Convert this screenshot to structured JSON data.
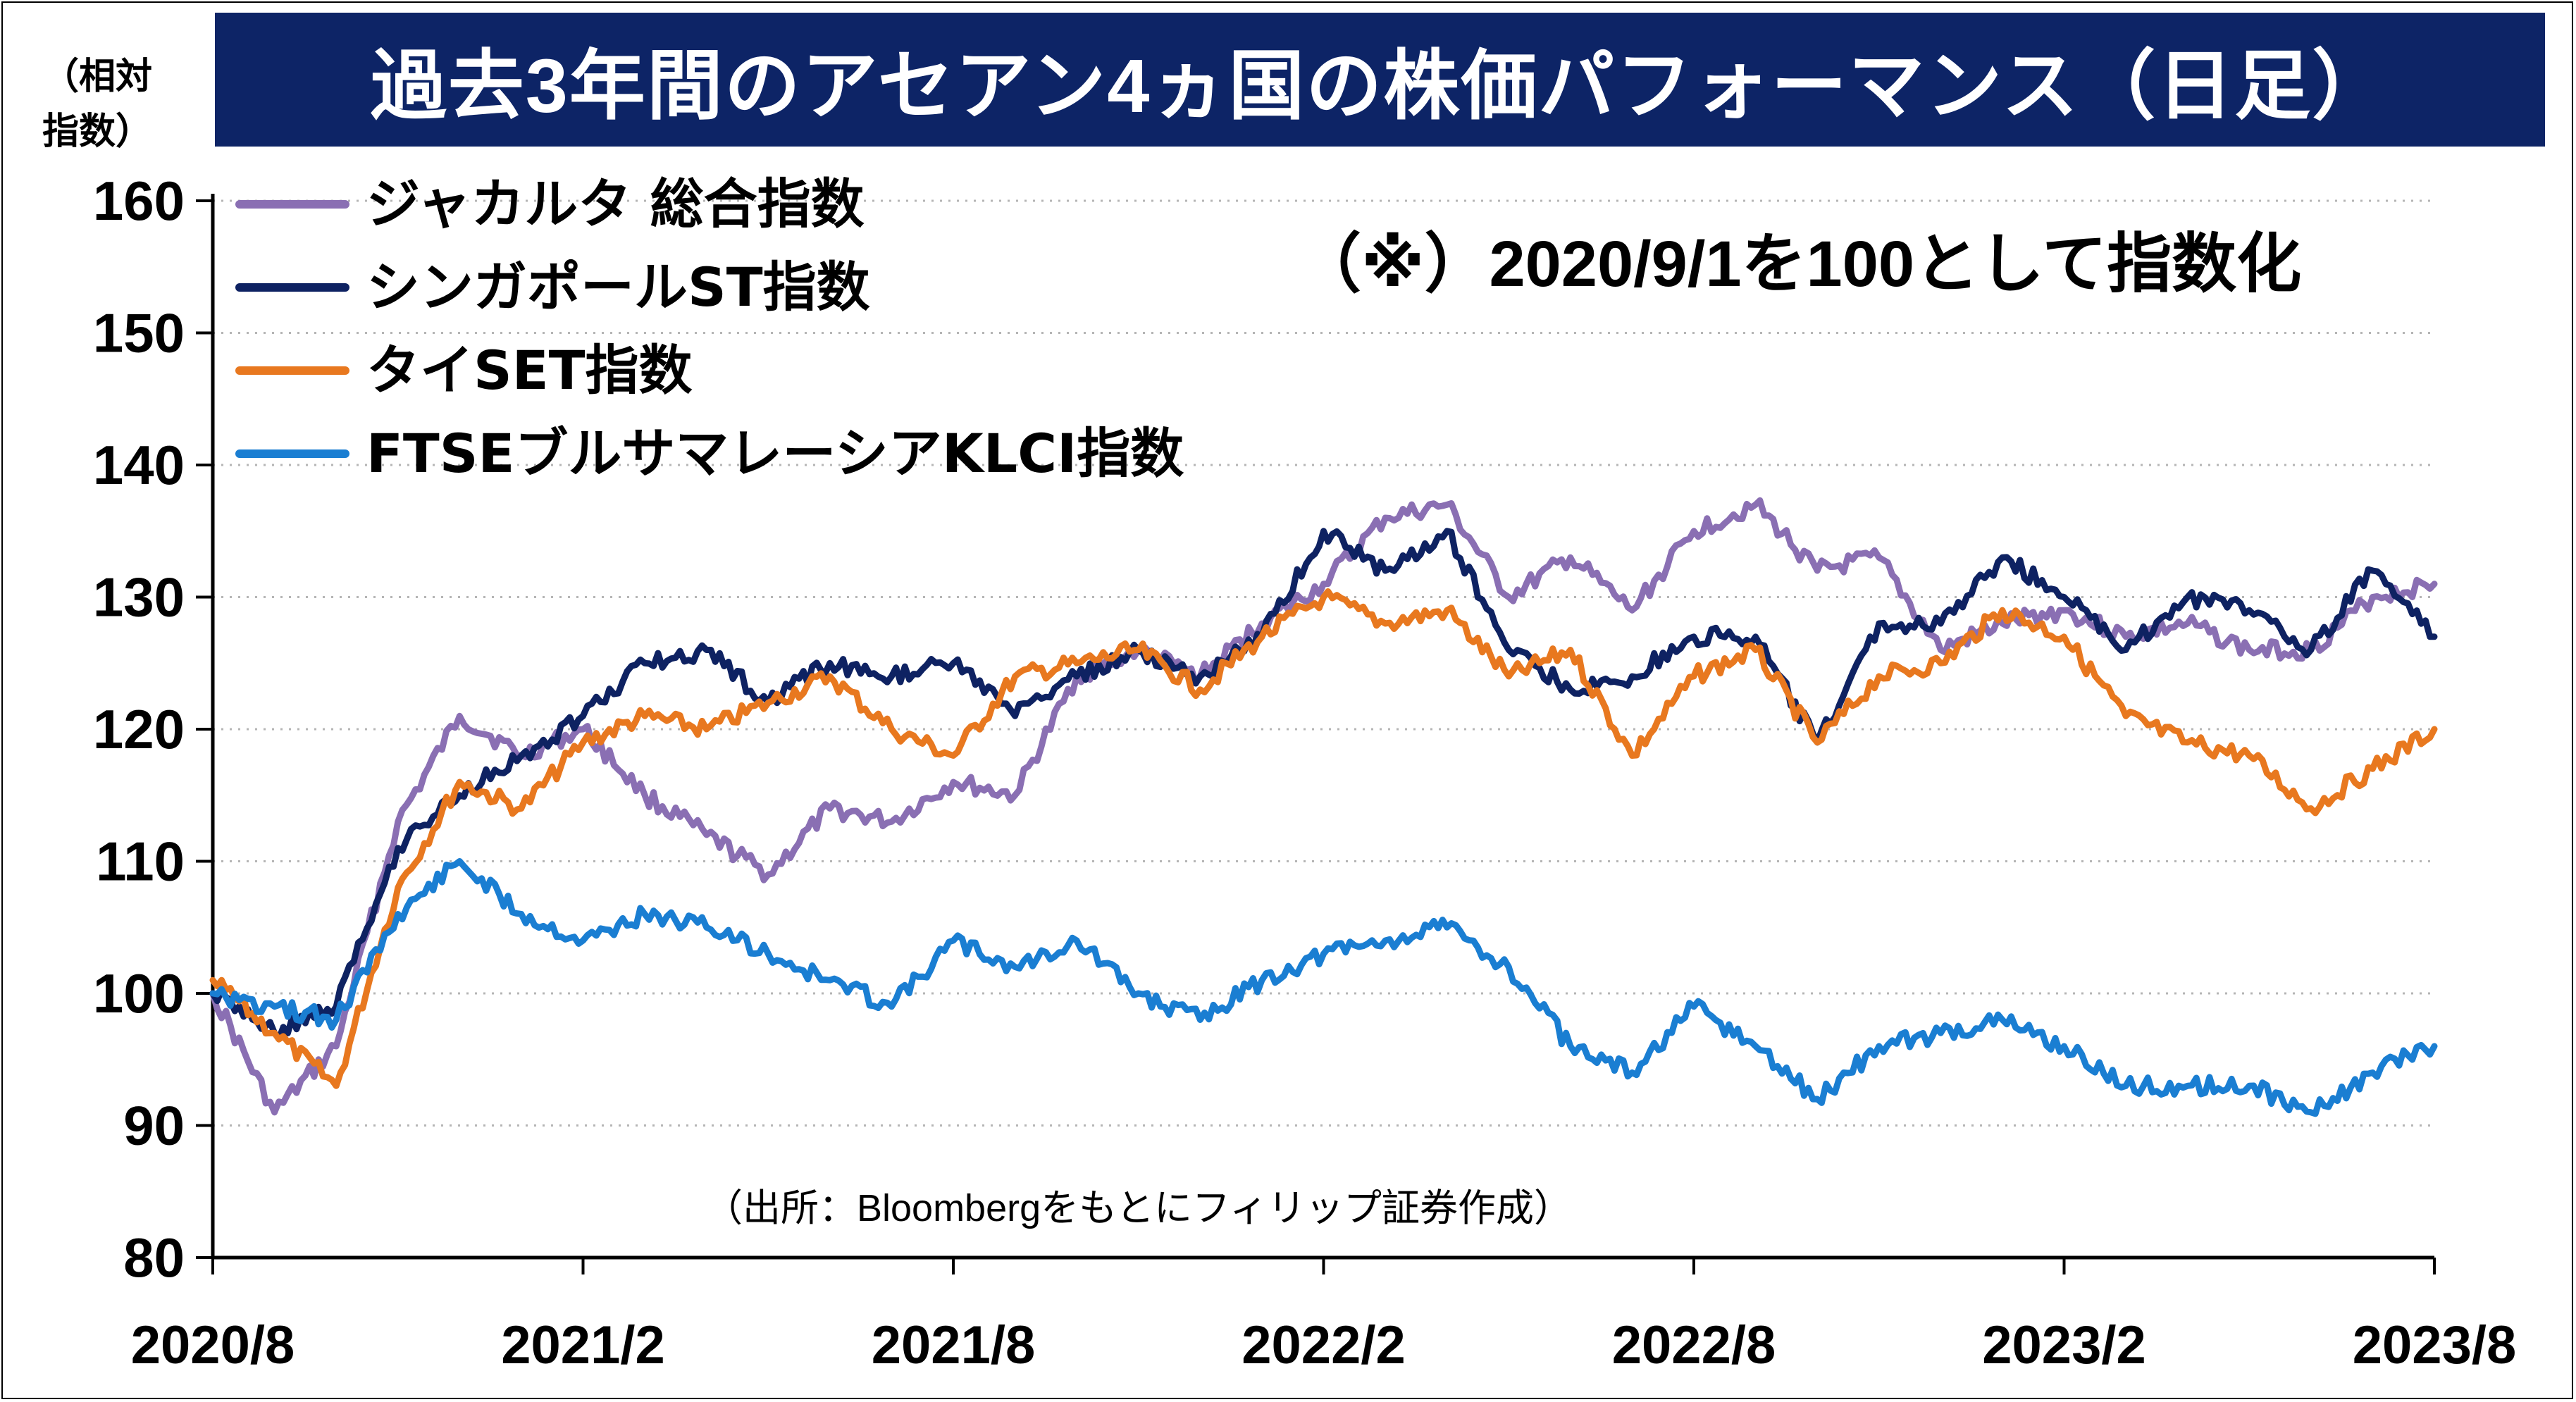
{
  "chart_data": {
    "type": "line",
    "title": "過去3年間のアセアン4ヵ国の株価パフォーマンス（日足）",
    "y_unit_label_line1": "（相対",
    "y_unit_label_line2": "指数）",
    "note": "（※）2020/9/1を100として指数化",
    "source": "（出所：Bloombergをもとにフィリップ証券作成）",
    "ylim": [
      80,
      160
    ],
    "yticks": [
      80,
      90,
      100,
      110,
      120,
      130,
      140,
      150,
      160
    ],
    "xlim": [
      "2020/8",
      "2023/8"
    ],
    "xticks": [
      "2020/8",
      "2021/2",
      "2021/8",
      "2022/2",
      "2022/8",
      "2023/2",
      "2023/8"
    ],
    "grid": true,
    "legend_position": "top-left",
    "series": [
      {
        "name": "ジャカルタ 総合指数",
        "color": "#8a6fb3",
        "points": [
          [
            "2020/8",
            100
          ],
          [
            "2020/9",
            91
          ],
          [
            "2020/10",
            96
          ],
          [
            "2020/11",
            113
          ],
          [
            "2020/12",
            121
          ],
          [
            "2021/1",
            118
          ],
          [
            "2021/2",
            120
          ],
          [
            "2021/3",
            115
          ],
          [
            "2021/4",
            112
          ],
          [
            "2021/5",
            109
          ],
          [
            "2021/6",
            114
          ],
          [
            "2021/7",
            113
          ],
          [
            "2021/8",
            116
          ],
          [
            "2021/9",
            115
          ],
          [
            "2021/10",
            124
          ],
          [
            "2021/11",
            126
          ],
          [
            "2021/12",
            124
          ],
          [
            "2022/1",
            128
          ],
          [
            "2022/2",
            131
          ],
          [
            "2022/3",
            136
          ],
          [
            "2022/4",
            137
          ],
          [
            "2022/5",
            130
          ],
          [
            "2022/6",
            133
          ],
          [
            "2022/7",
            129
          ],
          [
            "2022/8",
            135
          ],
          [
            "2022/9",
            137
          ],
          [
            "2022/10",
            132
          ],
          [
            "2022/11",
            133
          ],
          [
            "2022/12",
            126
          ],
          [
            "2023/1",
            128
          ],
          [
            "2023/2",
            129
          ],
          [
            "2023/3",
            127
          ],
          [
            "2023/4",
            128
          ],
          [
            "2023/5",
            126
          ],
          [
            "2023/6",
            126
          ],
          [
            "2023/7",
            130
          ],
          [
            "2023/8",
            131
          ]
        ]
      },
      {
        "name": "シンガポールST指数",
        "color": "#0e2262",
        "points": [
          [
            "2020/8",
            100
          ],
          [
            "2020/9",
            97
          ],
          [
            "2020/10",
            99
          ],
          [
            "2020/11",
            111
          ],
          [
            "2020/12",
            115
          ],
          [
            "2021/1",
            118
          ],
          [
            "2021/2",
            121
          ],
          [
            "2021/3",
            125
          ],
          [
            "2021/4",
            126
          ],
          [
            "2021/5",
            122
          ],
          [
            "2021/6",
            125
          ],
          [
            "2021/7",
            124
          ],
          [
            "2021/8",
            125
          ],
          [
            "2021/9",
            121
          ],
          [
            "2021/10",
            124
          ],
          [
            "2021/11",
            126
          ],
          [
            "2021/12",
            124
          ],
          [
            "2022/1",
            127
          ],
          [
            "2022/2",
            135
          ],
          [
            "2022/3",
            132
          ],
          [
            "2022/4",
            135
          ],
          [
            "2022/5",
            126
          ],
          [
            "2022/6",
            123
          ],
          [
            "2022/7",
            124
          ],
          [
            "2022/8",
            127
          ],
          [
            "2022/9",
            127
          ],
          [
            "2022/10",
            119
          ],
          [
            "2022/11",
            128
          ],
          [
            "2022/12",
            128
          ],
          [
            "2023/1",
            133
          ],
          [
            "2023/2",
            130
          ],
          [
            "2023/3",
            126
          ],
          [
            "2023/4",
            130
          ],
          [
            "2023/5",
            129
          ],
          [
            "2023/6",
            126
          ],
          [
            "2023/7",
            132
          ],
          [
            "2023/8",
            127
          ]
        ]
      },
      {
        "name": "タイSET指数",
        "color": "#e8781f",
        "points": [
          [
            "2020/8",
            101
          ],
          [
            "2020/9",
            97
          ],
          [
            "2020/10",
            93
          ],
          [
            "2020/11",
            108
          ],
          [
            "2020/12",
            116
          ],
          [
            "2021/1",
            114
          ],
          [
            "2021/2",
            119
          ],
          [
            "2021/3",
            121
          ],
          [
            "2021/4",
            120
          ],
          [
            "2021/5",
            122
          ],
          [
            "2021/6",
            124
          ],
          [
            "2021/7",
            120
          ],
          [
            "2021/8",
            118
          ],
          [
            "2021/9",
            124
          ],
          [
            "2021/10",
            125
          ],
          [
            "2021/11",
            126
          ],
          [
            "2021/12",
            123
          ],
          [
            "2022/1",
            127
          ],
          [
            "2022/2",
            130
          ],
          [
            "2022/3",
            128
          ],
          [
            "2022/4",
            129
          ],
          [
            "2022/5",
            124
          ],
          [
            "2022/6",
            126
          ],
          [
            "2022/7",
            118
          ],
          [
            "2022/8",
            124
          ],
          [
            "2022/9",
            126
          ],
          [
            "2022/10",
            119
          ],
          [
            "2022/11",
            124
          ],
          [
            "2022/12",
            125
          ],
          [
            "2023/1",
            129
          ],
          [
            "2023/2",
            127
          ],
          [
            "2023/3",
            121
          ],
          [
            "2023/4",
            119
          ],
          [
            "2023/5",
            118
          ],
          [
            "2023/6",
            114
          ],
          [
            "2023/7",
            117
          ],
          [
            "2023/8",
            120
          ]
        ]
      },
      {
        "name": "FTSEブルサマレーシアKLCI指数",
        "color": "#1a7ed2",
        "points": [
          [
            "2020/8",
            100
          ],
          [
            "2020/9",
            99
          ],
          [
            "2020/10",
            98
          ],
          [
            "2020/11",
            106
          ],
          [
            "2020/12",
            110
          ],
          [
            "2021/1",
            106
          ],
          [
            "2021/2",
            104
          ],
          [
            "2021/3",
            106
          ],
          [
            "2021/4",
            105
          ],
          [
            "2021/5",
            103
          ],
          [
            "2021/6",
            101
          ],
          [
            "2021/7",
            99
          ],
          [
            "2021/8",
            104
          ],
          [
            "2021/9",
            102
          ],
          [
            "2021/10",
            104
          ],
          [
            "2021/11",
            100
          ],
          [
            "2021/12",
            98
          ],
          [
            "2022/1",
            101
          ],
          [
            "2022/2",
            103
          ],
          [
            "2022/3",
            104
          ],
          [
            "2022/4",
            105
          ],
          [
            "2022/5",
            102
          ],
          [
            "2022/6",
            96
          ],
          [
            "2022/7",
            94
          ],
          [
            "2022/8",
            99
          ],
          [
            "2022/9",
            96
          ],
          [
            "2022/10",
            92
          ],
          [
            "2022/11",
            96
          ],
          [
            "2022/12",
            97
          ],
          [
            "2023/1",
            98
          ],
          [
            "2023/2",
            96
          ],
          [
            "2023/3",
            93
          ],
          [
            "2023/4",
            93
          ],
          [
            "2023/5",
            93
          ],
          [
            "2023/6",
            91
          ],
          [
            "2023/7",
            94
          ],
          [
            "2023/8",
            96
          ]
        ]
      }
    ]
  }
}
